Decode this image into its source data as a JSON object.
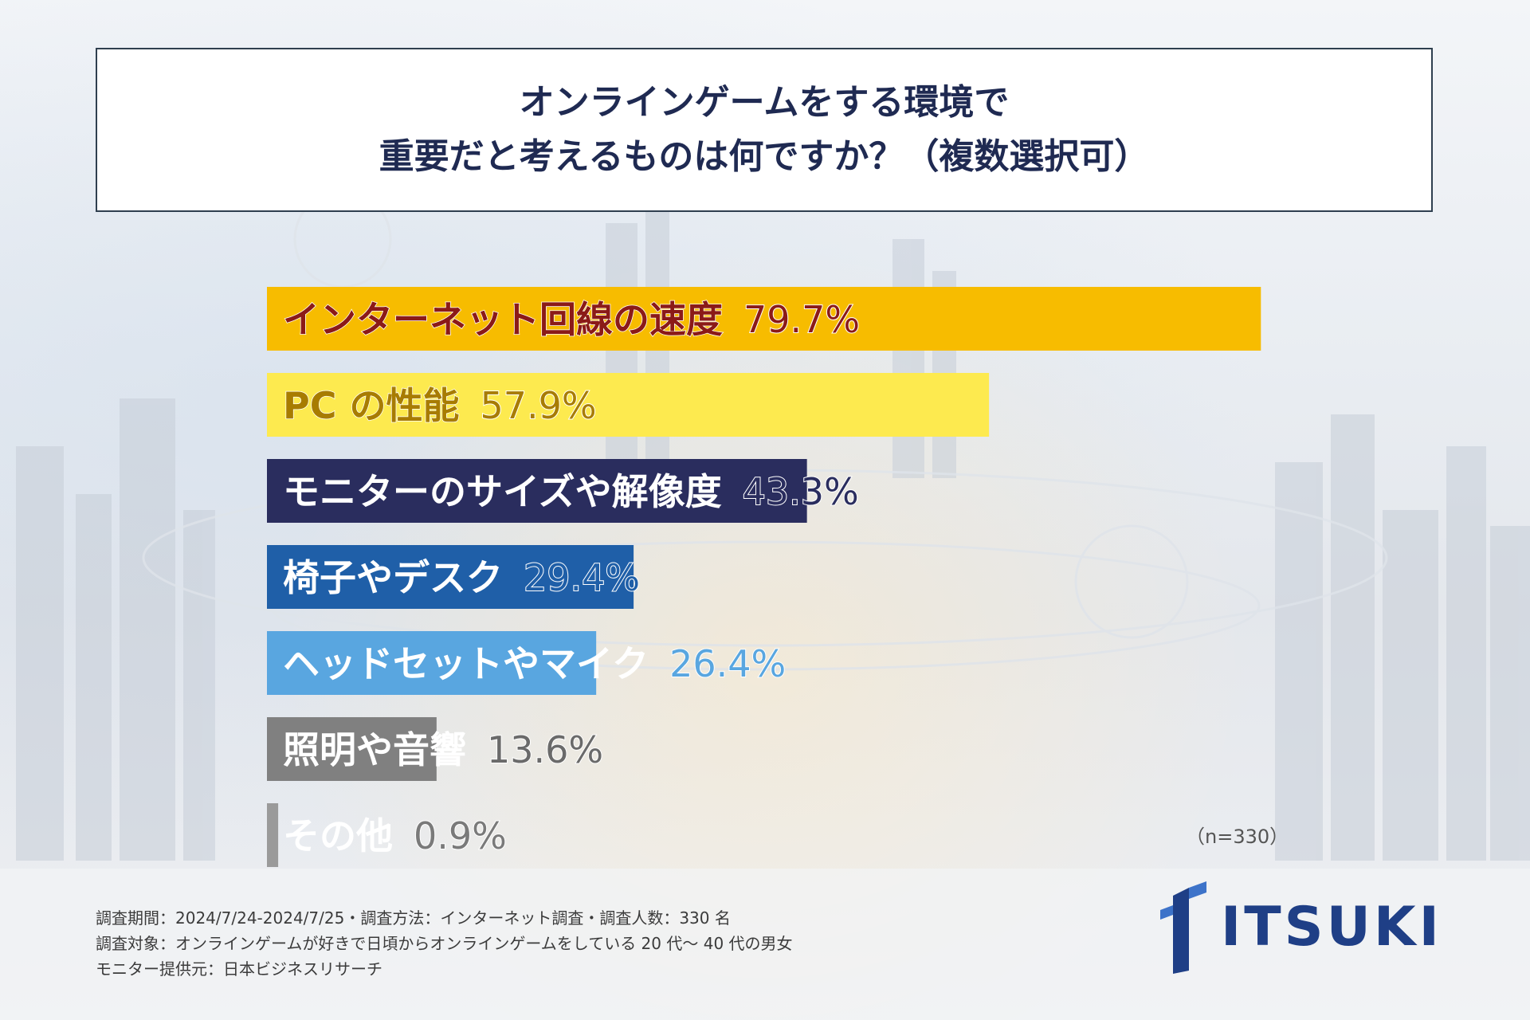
{
  "title": {
    "line1": "オンラインゲームをする環境で",
    "line2": "重要だと考えるものは何ですか？（複数選択可）"
  },
  "chart_data": {
    "type": "bar",
    "orientation": "horizontal",
    "categories": [
      "インターネット回線の速度",
      "PC の性能",
      "モニターのサイズや解像度",
      "椅子やデスク",
      "ヘッドセットやマイク",
      "照明や音響",
      "その他"
    ],
    "values": [
      79.7,
      57.9,
      43.3,
      29.4,
      26.4,
      13.6,
      0.9
    ],
    "value_labels": [
      "79.7%",
      "57.9%",
      "43.3%",
      "29.4%",
      "26.4%",
      "13.6%",
      "0.9%"
    ],
    "bar_colors": [
      "#f7bc00",
      "#fdea4f",
      "#2a2d5e",
      "#1f5fa8",
      "#59a6e0",
      "#808080",
      "#9a9a9a"
    ],
    "text_colors": [
      "#8b1a17",
      "#a87c00",
      "#ffffff",
      "#ffffff",
      "#ffffff",
      "#ffffff",
      "#ffffff"
    ],
    "value_colors": [
      "#8b1a17",
      "#a87c00",
      "#2a2d5e",
      "#1f5fa8",
      "#59a6e0",
      "#6a6a6a",
      "#7a7a7a"
    ],
    "xlim": [
      0,
      100
    ],
    "sample_size_label": "（n=330）"
  },
  "footer": {
    "line1": "調査期間：2024/7/24-2024/7/25・調査方法：インターネット調査・調査人数：330 名",
    "line2": "調査対象：オンラインゲームが好きで日頃からオンラインゲームをしている 20 代〜 40 代の男女",
    "line3": "モニター提供元：日本ビジネスリサーチ"
  },
  "logo": {
    "text": "ITSUKI",
    "color": "#1f3f86"
  }
}
